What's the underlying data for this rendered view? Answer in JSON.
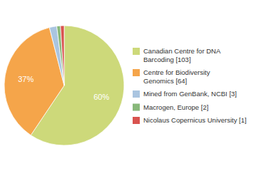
{
  "chart_data": {
    "type": "pie",
    "categories": [
      "Canadian Centre for DNA\nBarcoding [103]",
      "Centre for Biodiversity\nGenomics [64]",
      "Mined from GenBank, NCBI [3]",
      "Macrogen, Europe [2]",
      "Nicolaus Copernicus University [1]"
    ],
    "values": [
      60,
      37,
      2,
      1,
      1
    ],
    "value_labels": [
      "60%",
      "37%",
      null,
      null,
      null
    ],
    "data_labels": true,
    "colors": [
      "#cdd97a",
      "#f5a54a",
      "#aac5e0",
      "#88b87a",
      "#d9534f"
    ],
    "legend": "right"
  }
}
